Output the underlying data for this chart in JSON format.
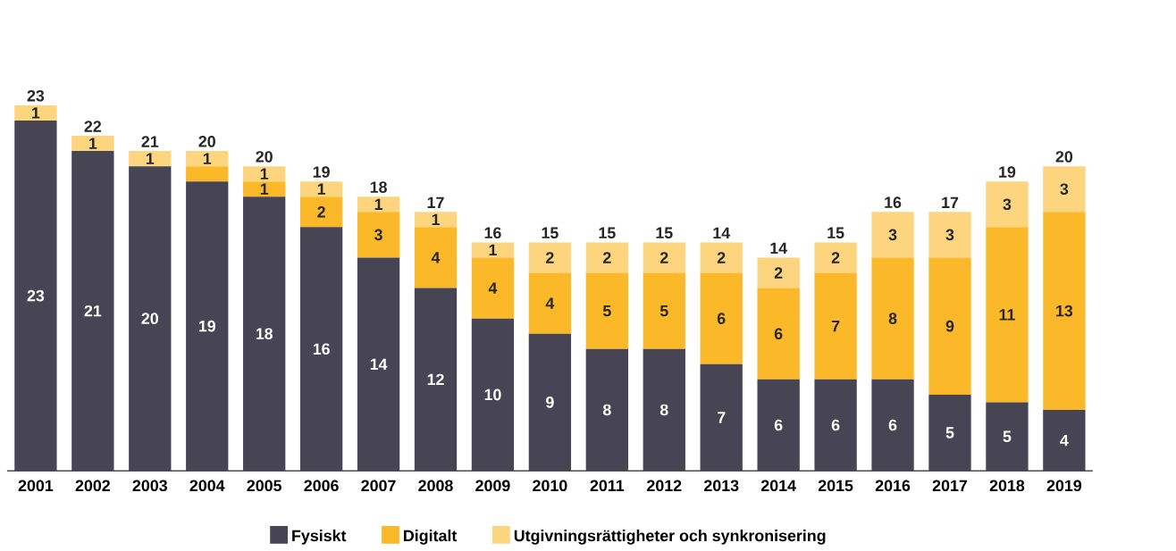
{
  "chart_data": {
    "type": "bar",
    "stacked": true,
    "legend": "bottom",
    "categories": [
      "2001",
      "2002",
      "2003",
      "2004",
      "2005",
      "2006",
      "2007",
      "2008",
      "2009",
      "2010",
      "2011",
      "2012",
      "2013",
      "2014",
      "2015",
      "2016",
      "2017",
      "2018",
      "2019"
    ],
    "series": [
      {
        "name": "Fysiskt",
        "color": "#474554",
        "values": [
          23,
          21,
          20,
          19,
          18,
          16,
          14,
          12,
          10,
          9,
          8,
          8,
          7,
          6,
          6,
          6,
          5,
          4.5,
          4
        ],
        "value_labels": [
          "23",
          "21",
          "20",
          "19",
          "18",
          "16",
          "14",
          "12",
          "10",
          "9",
          "8",
          "8",
          "7",
          "6",
          "6",
          "6",
          "5",
          "5",
          "4"
        ]
      },
      {
        "name": "Digitalt",
        "color": "#fbb829",
        "values": [
          0,
          0,
          0,
          1,
          1,
          2,
          3,
          4,
          4,
          4,
          5,
          5,
          6,
          6,
          7,
          8,
          9,
          11.5,
          13
        ],
        "value_labels": [
          null,
          null,
          null,
          null,
          "1",
          "2",
          "3",
          "4",
          "4",
          "4",
          "5",
          "5",
          "6",
          "6",
          "7",
          "8",
          "9",
          "11",
          "13"
        ]
      },
      {
        "name": "Utgivningsrättigheter och synkronisering",
        "color": "#fdd57e",
        "values": [
          1,
          1,
          1,
          1,
          1,
          1,
          1,
          1,
          1,
          2,
          2,
          2,
          2,
          2,
          2,
          3,
          3,
          3,
          3
        ],
        "value_labels": [
          "1",
          "1",
          "1",
          "1",
          "1",
          "1",
          "1",
          "1",
          "1",
          "2",
          "2",
          "2",
          "2",
          "2",
          "2",
          "3",
          "3",
          "3",
          "3"
        ]
      }
    ],
    "totals": [
      "23",
      "22",
      "21",
      "20",
      "20",
      "19",
      "18",
      "17",
      "16",
      "15",
      "15",
      "15",
      "14",
      "14",
      "15",
      "16",
      "17",
      "19",
      "20"
    ]
  }
}
